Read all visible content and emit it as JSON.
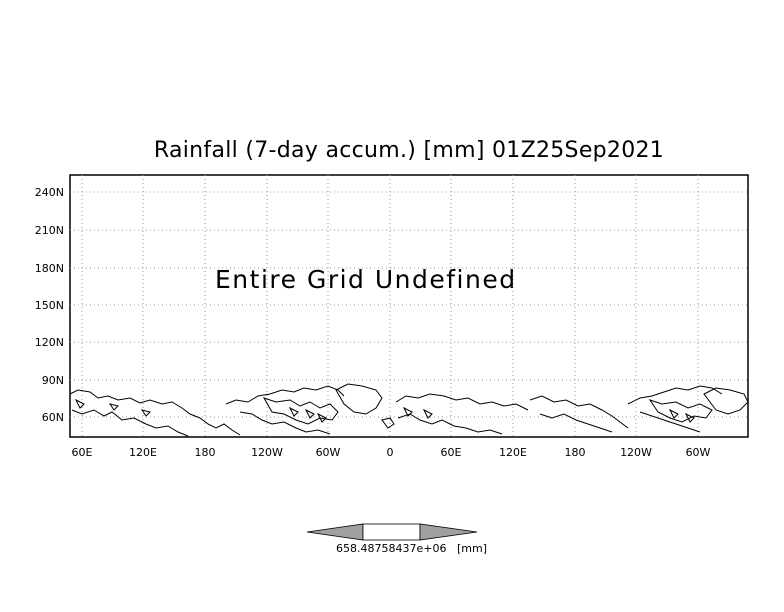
{
  "title": "Rainfall (7-day accum.) [mm] 01Z25Sep2021",
  "status_message": "Entire Grid Undefined",
  "lat_ticks": [
    "240N",
    "210N",
    "180N",
    "150N",
    "120N",
    "90N",
    "60N"
  ],
  "lon_ticks": [
    "60E",
    "120E",
    "180",
    "120W",
    "60W",
    "0",
    "60E",
    "120E",
    "180",
    "120W",
    "60W"
  ],
  "colorbar": {
    "value_label": "658.48758437e+06",
    "unit_label": "[mm]"
  }
}
